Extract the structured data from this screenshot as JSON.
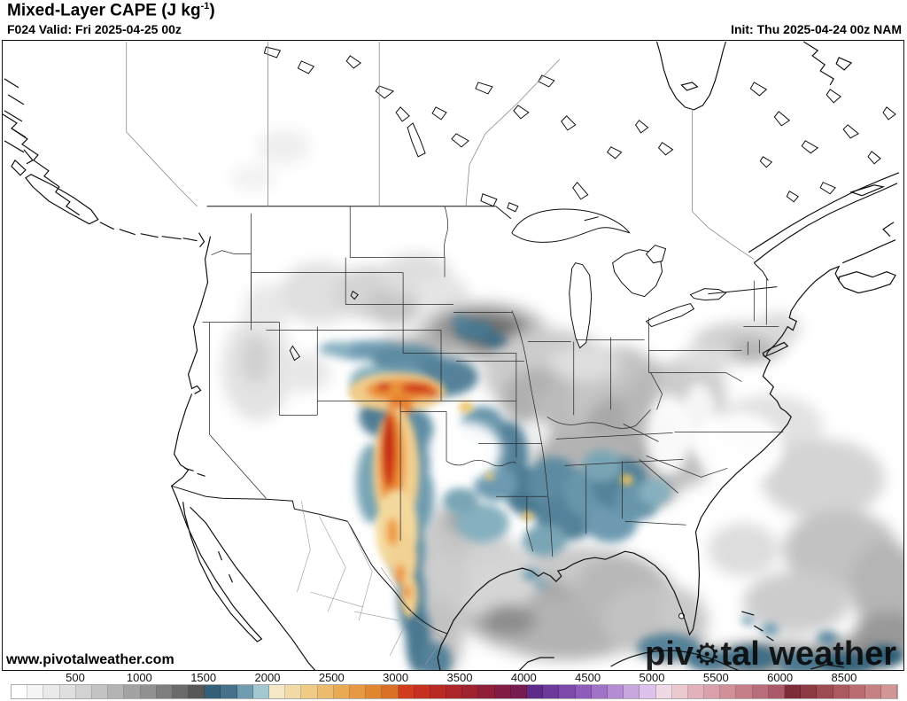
{
  "header": {
    "title_prefix": "Mixed-Layer CAPE (J kg",
    "title_sup": "-1",
    "title_suffix": ")",
    "valid": "F024 Valid: Fri 2025-04-25 00z",
    "init": "Init: Thu 2025-04-24 00z NAM"
  },
  "watermark": "www.pivotalweather.com",
  "logo": {
    "part1": "piv",
    "gear_glyph": "⚙",
    "part2": "tal weather"
  },
  "colorbar": {
    "unit": "J kg-1",
    "labels": [
      "500",
      "1000",
      "1500",
      "2000",
      "2500",
      "3000",
      "3500",
      "4000",
      "4500",
      "5000",
      "5500",
      "6000",
      "8500"
    ],
    "cell_colors": [
      "#ffffff",
      "#f5f5f5",
      "#eaeaea",
      "#dfdfdf",
      "#d2d2d2",
      "#c4c4c4",
      "#b4b4b4",
      "#a3a3a3",
      "#919191",
      "#7e7e7e",
      "#6b6b6b",
      "#575757",
      "#34607a",
      "#45728a",
      "#6f9cae",
      "#a3c8d0",
      "#f5e8c6",
      "#f2daa6",
      "#efcb86",
      "#ecbb6c",
      "#e9aa53",
      "#e69941",
      "#e28630",
      "#da7026",
      "#d13b1e",
      "#c63020",
      "#b92a24",
      "#ab2529",
      "#9e2230",
      "#901f3a",
      "#831d45",
      "#771b51",
      "#5e2c88",
      "#6d3a9b",
      "#7d4aac",
      "#8e5cba",
      "#a073c7",
      "#b38cd3",
      "#c8a7df",
      "#ddc3eb",
      "#efd9e4",
      "#ecc8cf",
      "#e3b1ba",
      "#daa0ab",
      "#d18f97",
      "#c67e88",
      "#b96c79",
      "#ac5a6a",
      "#7c2d38",
      "#8d3a44",
      "#9d4a52",
      "#ac5a60",
      "#ba6d71",
      "#c78185",
      "#d29697"
    ]
  },
  "palette": {
    "cape_low_gray": "#9a9a9a",
    "cape_mid_blue": "#4f7e96",
    "cape_high_orange": "#ee8f35",
    "cape_extreme_red": "#d13b1e"
  }
}
